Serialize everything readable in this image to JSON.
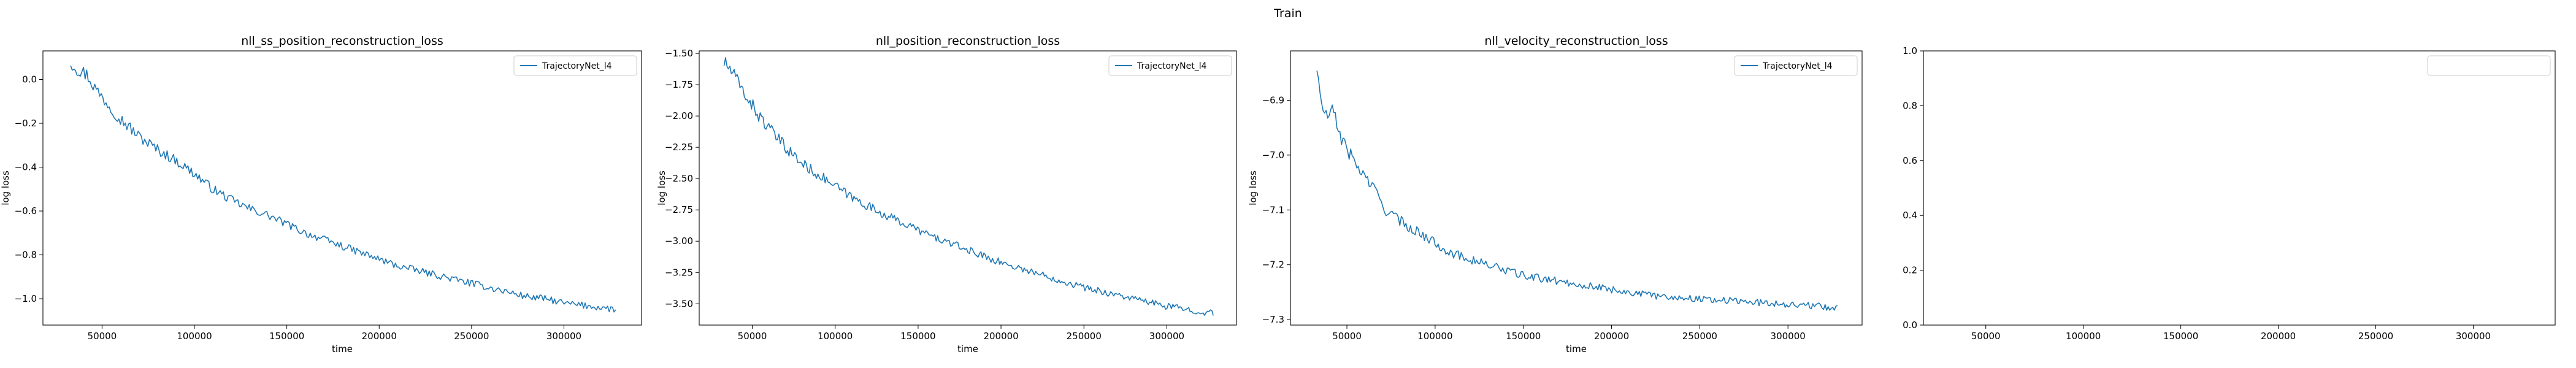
{
  "figure": {
    "suptitle": "Train"
  },
  "chart_data": [
    {
      "type": "line",
      "title": "nll_ss_position_reconstruction_loss",
      "xlabel": "time",
      "ylabel": "log loss",
      "xlim": [
        18000,
        342000
      ],
      "ylim": [
        -1.12,
        0.13
      ],
      "xticks": [
        50000,
        100000,
        150000,
        200000,
        250000,
        300000
      ],
      "xtick_labels": [
        "50000",
        "100000",
        "150000",
        "200000",
        "250000",
        "300000"
      ],
      "yticks": [
        -1.0,
        -0.8,
        -0.6,
        -0.4,
        -0.2,
        0.0
      ],
      "ytick_labels": [
        "−1.0",
        "−0.8",
        "−0.6",
        "−0.4",
        "−0.2",
        "0.0"
      ],
      "legend_loc": "upper-right",
      "series": [
        {
          "name": "TrajectoryNet_l4",
          "color": "#1f77b4",
          "x": [
            33000,
            38000,
            42000,
            47000,
            52000,
            60000,
            70000,
            80000,
            90000,
            100000,
            110000,
            120000,
            130000,
            140000,
            150000,
            160000,
            170000,
            180000,
            190000,
            200000,
            210000,
            220000,
            230000,
            240000,
            250000,
            260000,
            270000,
            280000,
            290000,
            300000,
            310000,
            320000,
            328000
          ],
          "y": [
            0.08,
            0.04,
            0.02,
            -0.05,
            -0.1,
            -0.18,
            -0.26,
            -0.32,
            -0.37,
            -0.43,
            -0.5,
            -0.55,
            -0.59,
            -0.62,
            -0.66,
            -0.7,
            -0.73,
            -0.76,
            -0.79,
            -0.82,
            -0.85,
            -0.87,
            -0.89,
            -0.91,
            -0.93,
            -0.95,
            -0.97,
            -0.99,
            -1.0,
            -1.02,
            -1.03,
            -1.04,
            -1.05
          ]
        }
      ]
    },
    {
      "type": "line",
      "title": "nll_position_reconstruction_loss",
      "xlabel": "time",
      "ylabel": "log loss",
      "xlim": [
        18000,
        342000
      ],
      "ylim": [
        -3.67,
        -1.48
      ],
      "xticks": [
        50000,
        100000,
        150000,
        200000,
        250000,
        300000
      ],
      "xtick_labels": [
        "50000",
        "100000",
        "150000",
        "200000",
        "250000",
        "300000"
      ],
      "yticks": [
        -3.5,
        -3.25,
        -3.0,
        -2.75,
        -2.5,
        -2.25,
        -2.0,
        -1.75,
        -1.5
      ],
      "ytick_labels": [
        "−3.50",
        "−3.25",
        "−3.00",
        "−2.75",
        "−2.50",
        "−2.25",
        "−2.00",
        "−1.75",
        "−1.50"
      ],
      "legend_loc": "upper-right",
      "series": [
        {
          "name": "TrajectoryNet_l4",
          "color": "#1f77b4",
          "x": [
            33000,
            38000,
            42000,
            47000,
            52000,
            60000,
            70000,
            80000,
            90000,
            100000,
            110000,
            120000,
            130000,
            140000,
            150000,
            160000,
            170000,
            180000,
            190000,
            200000,
            210000,
            220000,
            230000,
            240000,
            250000,
            260000,
            270000,
            280000,
            290000,
            300000,
            310000,
            320000,
            328000
          ],
          "y": [
            -1.57,
            -1.65,
            -1.75,
            -1.85,
            -1.96,
            -2.1,
            -2.25,
            -2.38,
            -2.47,
            -2.56,
            -2.65,
            -2.72,
            -2.79,
            -2.85,
            -2.91,
            -2.97,
            -3.02,
            -3.07,
            -3.12,
            -3.17,
            -3.21,
            -3.25,
            -3.29,
            -3.33,
            -3.37,
            -3.4,
            -3.43,
            -3.46,
            -3.49,
            -3.52,
            -3.54,
            -3.56,
            -3.58
          ]
        }
      ]
    },
    {
      "type": "line",
      "title": "nll_velocity_reconstruction_loss",
      "xlabel": "time",
      "ylabel": "log loss",
      "xlim": [
        18000,
        342000
      ],
      "ylim": [
        -7.31,
        -6.81
      ],
      "xticks": [
        50000,
        100000,
        150000,
        200000,
        250000,
        300000
      ],
      "xtick_labels": [
        "50000",
        "100000",
        "150000",
        "200000",
        "250000",
        "300000"
      ],
      "yticks": [
        -7.3,
        -7.2,
        -7.1,
        -7.0,
        -6.9
      ],
      "ytick_labels": [
        "−7.3",
        "−7.2",
        "−7.1",
        "−7.0",
        "−6.9"
      ],
      "legend_loc": "upper-right",
      "series": [
        {
          "name": "TrajectoryNet_l4",
          "color": "#1f77b4",
          "x": [
            33000,
            35000,
            38000,
            42000,
            47000,
            52000,
            58000,
            65000,
            72000,
            80000,
            90000,
            100000,
            110000,
            120000,
            130000,
            140000,
            150000,
            160000,
            170000,
            180000,
            190000,
            200000,
            210000,
            220000,
            230000,
            240000,
            250000,
            260000,
            270000,
            280000,
            290000,
            300000,
            310000,
            320000,
            328000
          ],
          "y": [
            -6.84,
            -6.9,
            -6.93,
            -6.92,
            -6.97,
            -7.0,
            -7.03,
            -7.06,
            -7.1,
            -7.12,
            -7.14,
            -7.16,
            -7.18,
            -7.19,
            -7.2,
            -7.21,
            -7.22,
            -7.225,
            -7.23,
            -7.235,
            -7.24,
            -7.245,
            -7.25,
            -7.255,
            -7.258,
            -7.26,
            -7.262,
            -7.264,
            -7.266,
            -7.268,
            -7.27,
            -7.272,
            -7.274,
            -7.276,
            -7.28
          ]
        }
      ]
    },
    {
      "type": "line",
      "title": "",
      "xlabel": "",
      "ylabel": "",
      "xlim": [
        18000,
        342000
      ],
      "ylim": [
        0.0,
        1.0
      ],
      "xticks": [
        50000,
        100000,
        150000,
        200000,
        250000,
        300000
      ],
      "xtick_labels": [
        "50000",
        "100000",
        "150000",
        "200000",
        "250000",
        "300000"
      ],
      "yticks": [
        0.0,
        0.2,
        0.4,
        0.6,
        0.8,
        1.0
      ],
      "ytick_labels": [
        "0.0",
        "0.2",
        "0.4",
        "0.6",
        "0.8",
        "1.0"
      ],
      "legend_loc": "upper-right",
      "series": []
    }
  ]
}
